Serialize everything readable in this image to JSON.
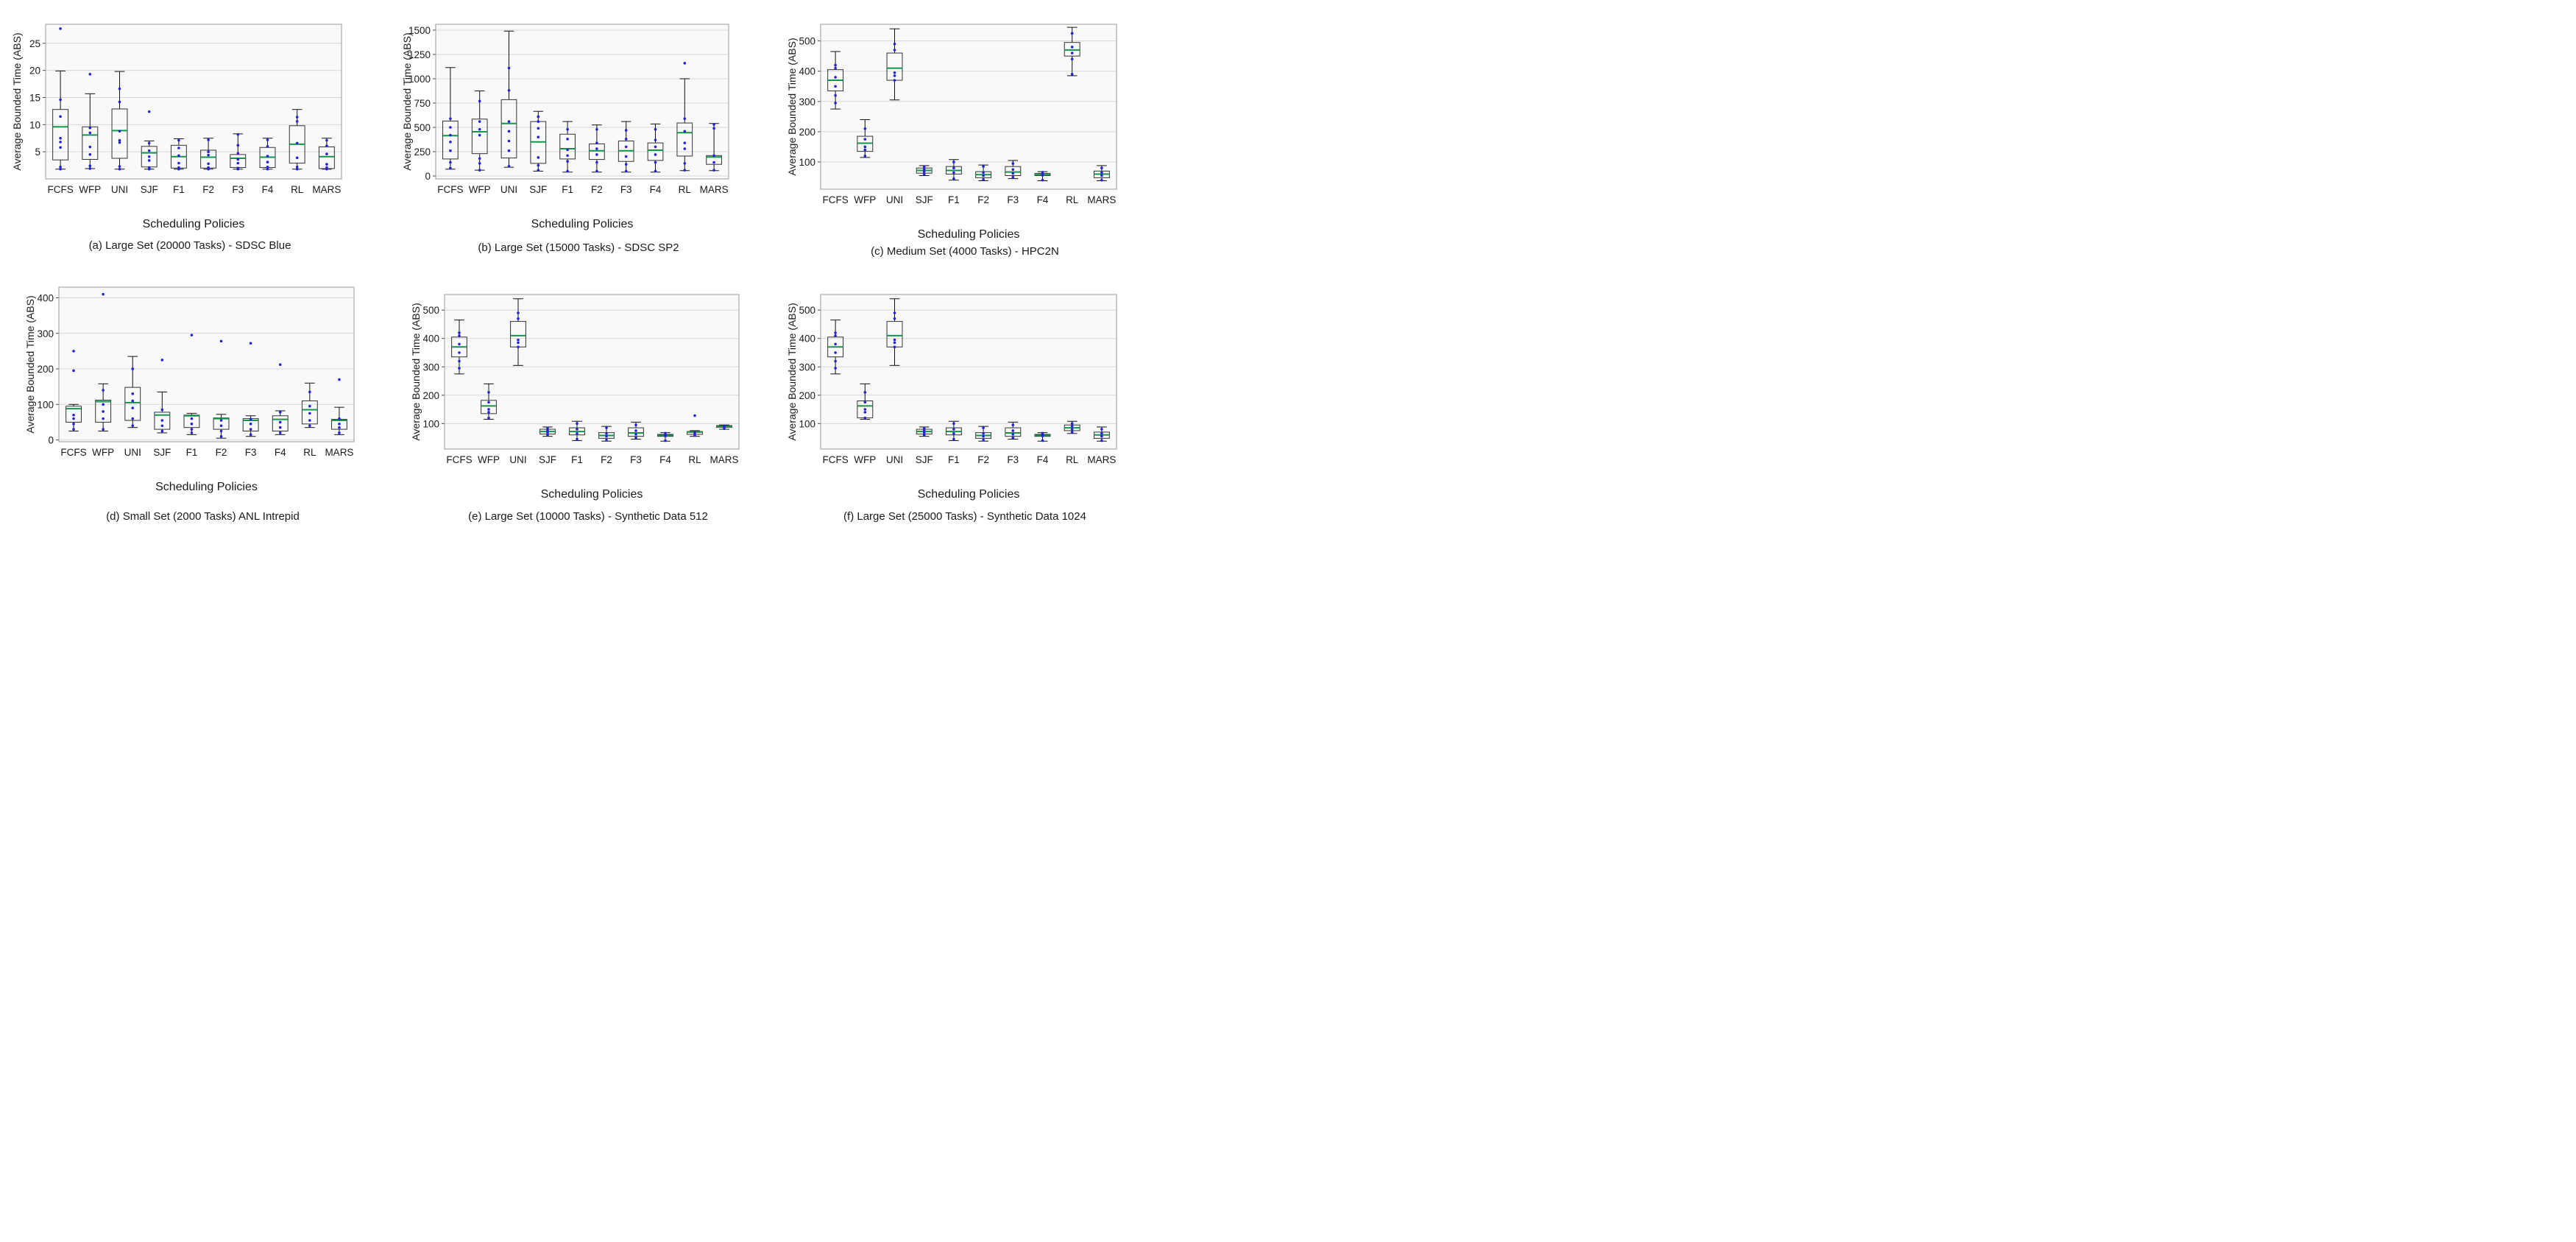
{
  "chart_data": [
    {
      "type": "box",
      "caption": "(a) Large Set (20000 Tasks) - SDSC Blue",
      "xlabel": "Scheduling Policies",
      "ylabel": "Average Bounded Time (ABS)",
      "ylim": [
        0,
        28.5
      ],
      "yticks": [
        5,
        10,
        15,
        20,
        25
      ],
      "grid": "horizontal",
      "categories": [
        "FCFS",
        "WFP",
        "UNI",
        "SJF",
        "F1",
        "F2",
        "F3",
        "F4",
        "RL",
        "MARS"
      ],
      "boxes": [
        {
          "min": 1.8,
          "q1": 3.5,
          "median": 9.6,
          "q3": 12.8,
          "max": 19.9,
          "points": [
            1.8,
            2.2,
            5.8,
            6.8,
            7.5,
            11.5,
            14.6,
            27.7
          ]
        },
        {
          "min": 1.9,
          "q1": 3.6,
          "median": 8.1,
          "q3": 9.6,
          "max": 15.7,
          "points": [
            1.9,
            2.4,
            4.5,
            5.9,
            8.5,
            9.4,
            19.3
          ]
        },
        {
          "min": 1.8,
          "q1": 3.8,
          "median": 8.9,
          "q3": 12.9,
          "max": 19.8,
          "points": [
            1.8,
            2.3,
            6.7,
            7.1,
            8.8,
            14.2,
            16.6
          ]
        },
        {
          "min": 1.8,
          "q1": 2.2,
          "median": 4.8,
          "q3": 6.0,
          "max": 7.0,
          "points": [
            1.8,
            2.1,
            3.4,
            4.1,
            5.2,
            6.6,
            12.4
          ]
        },
        {
          "min": 1.8,
          "q1": 2.0,
          "median": 4.1,
          "q3": 6.2,
          "max": 7.4,
          "points": [
            1.8,
            2.1,
            2.9,
            4.3,
            5.7,
            7.1
          ]
        },
        {
          "min": 1.8,
          "q1": 2.0,
          "median": 4.0,
          "q3": 5.3,
          "max": 7.5,
          "points": [
            1.8,
            2.1,
            2.8,
            4.4,
            5.0,
            7.2
          ]
        },
        {
          "min": 1.8,
          "q1": 2.1,
          "median": 3.8,
          "q3": 4.5,
          "max": 8.3,
          "points": [
            1.8,
            2.0,
            2.9,
            3.6,
            4.7,
            6.2,
            8.2
          ]
        },
        {
          "min": 1.8,
          "q1": 2.1,
          "median": 4.0,
          "q3": 5.8,
          "max": 7.5,
          "points": [
            1.8,
            2.2,
            3.1,
            4.2,
            6.0,
            7.2
          ]
        },
        {
          "min": 1.8,
          "q1": 2.9,
          "median": 6.4,
          "q3": 9.8,
          "max": 12.8,
          "points": [
            1.8,
            2.2,
            3.9,
            6.6,
            10.6,
            11.4
          ]
        },
        {
          "min": 1.8,
          "q1": 1.9,
          "median": 4.1,
          "q3": 5.9,
          "max": 7.5,
          "points": [
            1.8,
            2.1,
            2.7,
            4.6,
            6.1,
            7.1
          ]
        }
      ]
    },
    {
      "type": "box",
      "caption": "(b) Large Set (15000 Tasks) - SDSC SP2",
      "xlabel": "Scheduling Policies",
      "ylabel": "Average Bounded Time (ABS)",
      "ylim": [
        -30,
        1560
      ],
      "yticks": [
        0,
        250,
        500,
        750,
        1000,
        1250,
        1500
      ],
      "grid": "horizontal",
      "categories": [
        "FCFS",
        "WFP",
        "UNI",
        "SJF",
        "F1",
        "F2",
        "F3",
        "F4",
        "RL",
        "MARS"
      ],
      "boxes": [
        {
          "min": 70,
          "q1": 175,
          "median": 415,
          "q3": 565,
          "max": 1115,
          "points": [
            80,
            140,
            260,
            350,
            420,
            500,
            590
          ]
        },
        {
          "min": 60,
          "q1": 230,
          "median": 455,
          "q3": 585,
          "max": 875,
          "points": [
            60,
            130,
            180,
            420,
            480,
            560,
            770
          ]
        },
        {
          "min": 90,
          "q1": 185,
          "median": 540,
          "q3": 785,
          "max": 1490,
          "points": [
            100,
            260,
            360,
            460,
            560,
            880,
            1110
          ]
        },
        {
          "min": 50,
          "q1": 130,
          "median": 350,
          "q3": 560,
          "max": 665,
          "points": [
            60,
            110,
            190,
            400,
            490,
            560,
            610
          ]
        },
        {
          "min": 40,
          "q1": 175,
          "median": 280,
          "q3": 430,
          "max": 560,
          "points": [
            50,
            150,
            210,
            270,
            380,
            480
          ]
        },
        {
          "min": 40,
          "q1": 170,
          "median": 260,
          "q3": 330,
          "max": 525,
          "points": [
            50,
            140,
            220,
            280,
            340,
            480
          ]
        },
        {
          "min": 40,
          "q1": 150,
          "median": 260,
          "q3": 360,
          "max": 560,
          "points": [
            50,
            120,
            200,
            300,
            380,
            470
          ]
        },
        {
          "min": 40,
          "q1": 160,
          "median": 265,
          "q3": 340,
          "max": 535,
          "points": [
            50,
            140,
            220,
            300,
            370,
            480
          ]
        },
        {
          "min": 55,
          "q1": 205,
          "median": 445,
          "q3": 545,
          "max": 1000,
          "points": [
            60,
            130,
            280,
            340,
            460,
            590,
            1160
          ]
        },
        {
          "min": 55,
          "q1": 120,
          "median": 195,
          "q3": 210,
          "max": 540,
          "points": [
            60,
            140,
            210,
            490,
            530
          ]
        }
      ]
    },
    {
      "type": "box",
      "caption": "(c) Medium Set (4000 Tasks) - HPC2N",
      "xlabel": "Scheduling Policies",
      "ylabel": "Average Bounded Time (ABS)",
      "ylim": [
        10,
        555
      ],
      "yticks": [
        100,
        200,
        300,
        400,
        500
      ],
      "grid": "horizontal",
      "categories": [
        "FCFS",
        "WFP",
        "UNI",
        "SJF",
        "F1",
        "F2",
        "F3",
        "F4",
        "RL",
        "MARS"
      ],
      "boxes": [
        {
          "min": 275,
          "q1": 335,
          "median": 370,
          "q3": 405,
          "max": 465,
          "points": [
            295,
            320,
            350,
            380,
            410,
            420
          ]
        },
        {
          "min": 115,
          "q1": 135,
          "median": 162,
          "q3": 185,
          "max": 240,
          "points": [
            120,
            140,
            150,
            175,
            210
          ]
        },
        {
          "min": 305,
          "q1": 370,
          "median": 410,
          "q3": 460,
          "max": 540,
          "points": [
            370,
            385,
            395,
            470,
            490
          ]
        },
        {
          "min": 55,
          "q1": 63,
          "median": 72,
          "q3": 80,
          "max": 88,
          "points": [
            60,
            68,
            76,
            84
          ]
        },
        {
          "min": 40,
          "q1": 60,
          "median": 72,
          "q3": 85,
          "max": 108,
          "points": [
            45,
            65,
            80,
            100
          ]
        },
        {
          "min": 38,
          "q1": 48,
          "median": 58,
          "q3": 68,
          "max": 90,
          "points": [
            42,
            55,
            65,
            85
          ]
        },
        {
          "min": 45,
          "q1": 55,
          "median": 67,
          "q3": 85,
          "max": 105,
          "points": [
            50,
            62,
            75,
            95
          ]
        },
        {
          "min": 38,
          "q1": 55,
          "median": 58,
          "q3": 62,
          "max": 68,
          "points": [
            40,
            56,
            60,
            66
          ]
        },
        {
          "min": 385,
          "q1": 450,
          "median": 470,
          "q3": 495,
          "max": 545,
          "points": [
            390,
            440,
            460,
            480,
            525
          ]
        },
        {
          "min": 38,
          "q1": 48,
          "median": 60,
          "q3": 70,
          "max": 88,
          "points": [
            40,
            55,
            65,
            80
          ]
        }
      ]
    },
    {
      "type": "box",
      "caption": "(d) Small Set (2000 Tasks) ANL Intrepid",
      "xlabel": "Scheduling Policies",
      "ylabel": "Average Bounded Time (ABS)",
      "ylim": [
        -5,
        430
      ],
      "yticks": [
        0,
        100,
        200,
        300,
        400
      ],
      "grid": "horizontal",
      "categories": [
        "FCFS",
        "WFP",
        "UNI",
        "SJF",
        "F1",
        "F2",
        "F3",
        "F4",
        "RL",
        "MARS"
      ],
      "boxes": [
        {
          "min": 25,
          "q1": 50,
          "median": 88,
          "q3": 95,
          "max": 100,
          "points": [
            30,
            45,
            60,
            70,
            195,
            250
          ]
        },
        {
          "min": 25,
          "q1": 50,
          "median": 108,
          "q3": 112,
          "max": 158,
          "points": [
            30,
            60,
            80,
            100,
            140,
            410
          ]
        },
        {
          "min": 35,
          "q1": 55,
          "median": 105,
          "q3": 148,
          "max": 235,
          "points": [
            40,
            60,
            90,
            110,
            130,
            200
          ]
        },
        {
          "min": 20,
          "q1": 30,
          "median": 70,
          "q3": 78,
          "max": 135,
          "points": [
            25,
            40,
            55,
            85,
            225
          ]
        },
        {
          "min": 15,
          "q1": 35,
          "median": 68,
          "q3": 70,
          "max": 75,
          "points": [
            20,
            30,
            45,
            60,
            295
          ]
        },
        {
          "min": 5,
          "q1": 30,
          "median": 60,
          "q3": 62,
          "max": 72,
          "points": [
            10,
            25,
            40,
            55,
            278
          ]
        },
        {
          "min": 10,
          "q1": 25,
          "median": 55,
          "q3": 60,
          "max": 68,
          "points": [
            15,
            30,
            45,
            58,
            272
          ]
        },
        {
          "min": 15,
          "q1": 25,
          "median": 58,
          "q3": 68,
          "max": 82,
          "points": [
            20,
            35,
            50,
            78,
            212
          ]
        },
        {
          "min": 35,
          "q1": 45,
          "median": 85,
          "q3": 110,
          "max": 160,
          "points": [
            40,
            55,
            75,
            95,
            135
          ]
        },
        {
          "min": 15,
          "q1": 30,
          "median": 55,
          "q3": 58,
          "max": 92,
          "points": [
            20,
            35,
            45,
            60,
            170
          ]
        }
      ]
    },
    {
      "type": "box",
      "caption": "(e) Large Set (10000 Tasks)  - Synthetic Data 512",
      "xlabel": "Scheduling Policies",
      "ylabel": "Average Bounded Time (ABS)",
      "ylim": [
        10,
        555
      ],
      "yticks": [
        100,
        200,
        300,
        400,
        500
      ],
      "grid": "horizontal",
      "categories": [
        "FCFS",
        "WFP",
        "UNI",
        "SJF",
        "F1",
        "F2",
        "F3",
        "F4",
        "RL",
        "MARS"
      ],
      "boxes": [
        {
          "min": 275,
          "q1": 335,
          "median": 370,
          "q3": 405,
          "max": 465,
          "points": [
            295,
            320,
            350,
            380,
            410,
            420
          ]
        },
        {
          "min": 115,
          "q1": 135,
          "median": 162,
          "q3": 182,
          "max": 240,
          "points": [
            120,
            140,
            150,
            175,
            210
          ]
        },
        {
          "min": 305,
          "q1": 370,
          "median": 410,
          "q3": 460,
          "max": 540,
          "points": [
            370,
            385,
            395,
            470,
            490
          ]
        },
        {
          "min": 55,
          "q1": 63,
          "median": 72,
          "q3": 80,
          "max": 88,
          "points": [
            60,
            68,
            76,
            84
          ]
        },
        {
          "min": 40,
          "q1": 60,
          "median": 72,
          "q3": 85,
          "max": 108,
          "points": [
            45,
            65,
            80,
            100
          ]
        },
        {
          "min": 38,
          "q1": 48,
          "median": 58,
          "q3": 68,
          "max": 90,
          "points": [
            42,
            55,
            65,
            85
          ]
        },
        {
          "min": 45,
          "q1": 55,
          "median": 67,
          "q3": 85,
          "max": 105,
          "points": [
            50,
            62,
            75,
            95
          ]
        },
        {
          "min": 38,
          "q1": 55,
          "median": 58,
          "q3": 62,
          "max": 68,
          "points": [
            40,
            56,
            60,
            66
          ]
        },
        {
          "min": 55,
          "q1": 62,
          "median": 70,
          "q3": 72,
          "max": 75,
          "points": [
            58,
            64,
            68,
            128
          ]
        },
        {
          "min": 80,
          "q1": 87,
          "median": 90,
          "q3": 93,
          "max": 95,
          "points": [
            82,
            88,
            92
          ]
        }
      ]
    },
    {
      "type": "box",
      "caption": "(f) Large Set (25000 Tasks) - Synthetic Data 1024",
      "xlabel": "Scheduling Policies",
      "ylabel": "Average Bounded Time (ABS)",
      "ylim": [
        10,
        555
      ],
      "yticks": [
        100,
        200,
        300,
        400,
        500
      ],
      "grid": "horizontal",
      "categories": [
        "FCFS",
        "WFP",
        "UNI",
        "SJF",
        "F1",
        "F2",
        "F3",
        "F4",
        "RL",
        "MARS"
      ],
      "boxes": [
        {
          "min": 275,
          "q1": 335,
          "median": 370,
          "q3": 405,
          "max": 465,
          "points": [
            295,
            320,
            350,
            380,
            410,
            420
          ]
        },
        {
          "min": 115,
          "q1": 120,
          "median": 162,
          "q3": 180,
          "max": 240,
          "points": [
            120,
            140,
            150,
            175,
            210
          ]
        },
        {
          "min": 305,
          "q1": 370,
          "median": 410,
          "q3": 460,
          "max": 540,
          "points": [
            370,
            385,
            395,
            470,
            490
          ]
        },
        {
          "min": 55,
          "q1": 63,
          "median": 72,
          "q3": 80,
          "max": 88,
          "points": [
            60,
            68,
            76,
            84
          ]
        },
        {
          "min": 40,
          "q1": 60,
          "median": 72,
          "q3": 85,
          "max": 108,
          "points": [
            45,
            65,
            80,
            100
          ]
        },
        {
          "min": 38,
          "q1": 48,
          "median": 58,
          "q3": 68,
          "max": 90,
          "points": [
            42,
            55,
            65,
            85
          ]
        },
        {
          "min": 45,
          "q1": 55,
          "median": 67,
          "q3": 85,
          "max": 105,
          "points": [
            50,
            62,
            75,
            95
          ]
        },
        {
          "min": 38,
          "q1": 55,
          "median": 58,
          "q3": 62,
          "max": 68,
          "points": [
            40,
            56,
            60,
            66
          ]
        },
        {
          "min": 65,
          "q1": 75,
          "median": 85,
          "q3": 95,
          "max": 108,
          "points": [
            70,
            80,
            90,
            100
          ]
        },
        {
          "min": 38,
          "q1": 48,
          "median": 60,
          "q3": 70,
          "max": 88,
          "points": [
            40,
            55,
            65,
            80
          ]
        }
      ]
    }
  ],
  "colors": {
    "median": "#13964a",
    "box": "#333333",
    "whisker": "#111111",
    "point": "#2222dd",
    "grid": "#d8d8d8",
    "plot_bg": "#f9f9f9",
    "frame": "#9a9a9a"
  }
}
